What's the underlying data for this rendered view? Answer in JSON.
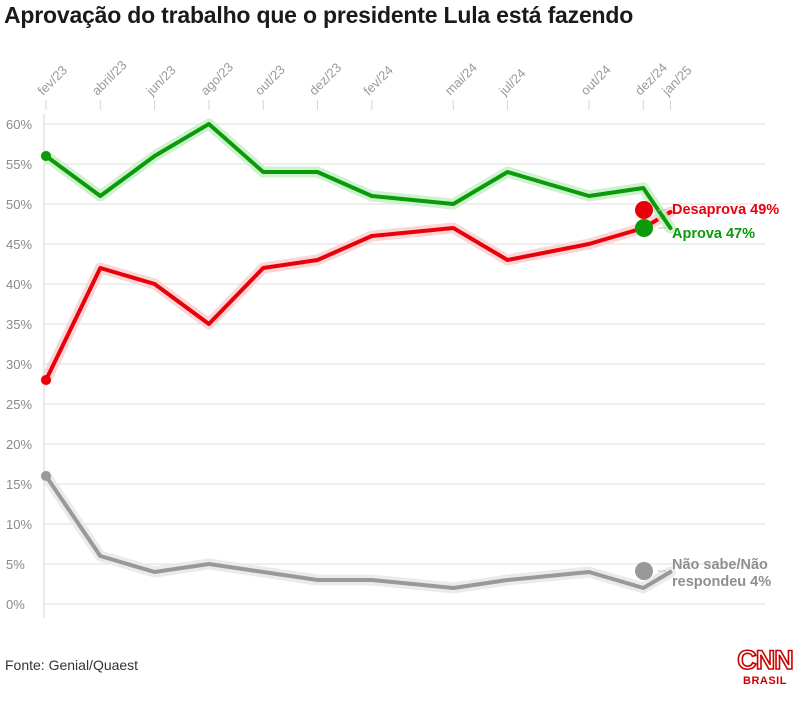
{
  "title": "Aprovação do trabalho que o presidente Lula está fazendo",
  "source": "Fonte: Genial/Quaest",
  "logo": {
    "text_top": "CNN",
    "text_bottom": "BRASIL",
    "color": "#cc0000"
  },
  "chart_data": {
    "type": "line",
    "title": "Aprovação do trabalho que o presidente Lula está fazendo",
    "x_tick_labels": [
      "fev/23",
      "abril/23",
      "jun/23",
      "ago/23",
      "out/23",
      "dez/23",
      "fev/24",
      "mai/24",
      "jul/24",
      "out/24",
      "dez/24",
      "jan/25"
    ],
    "x": [
      "2023-02",
      "2023-04",
      "2023-06",
      "2023-08",
      "2023-10",
      "2023-12",
      "2024-02",
      "2024-05",
      "2024-07",
      "2024-10",
      "2024-12",
      "2025-01"
    ],
    "y_ticks": [
      "0%",
      "5%",
      "10%",
      "15%",
      "20%",
      "25%",
      "30%",
      "35%",
      "40%",
      "45%",
      "50%",
      "55%",
      "60%"
    ],
    "ylim": [
      0,
      60
    ],
    "grid": true,
    "series": [
      {
        "name": "Aprova",
        "color": "#0a9a0a",
        "values": [
          56,
          51,
          56,
          60,
          54,
          54,
          51,
          50,
          54,
          51,
          52,
          47
        ],
        "end_label": "Aprova 47%"
      },
      {
        "name": "Desaprova",
        "color": "#e8000b",
        "values": [
          28,
          42,
          40,
          35,
          42,
          43,
          46,
          47,
          43,
          45,
          47,
          49
        ],
        "end_label": "Desaprova 49%"
      },
      {
        "name": "Não sabe/Não respondeu",
        "color": "#999999",
        "values": [
          16,
          6,
          4,
          5,
          4,
          3,
          3,
          2,
          3,
          4,
          2,
          4
        ],
        "end_label_lines": [
          "Não sabe/Não",
          "respondeu 4%"
        ]
      }
    ]
  }
}
